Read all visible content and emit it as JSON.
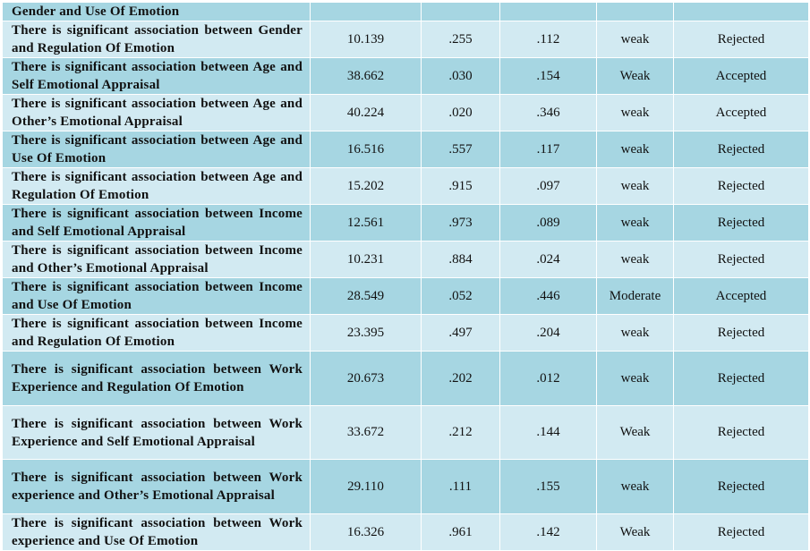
{
  "table": {
    "first_row_label": "Gender and Use Of Emotion",
    "rows": [
      {
        "hypothesis": "There is significant association between Gender and Regulation Of Emotion",
        "chi_square": "10.139",
        "p_value": ".255",
        "coefficient": ".112",
        "strength": "weak",
        "result": "Rejected"
      },
      {
        "hypothesis": "There is significant association between Age and Self Emotional Appraisal",
        "chi_square": "38.662",
        "p_value": ".030",
        "coefficient": ".154",
        "strength": "Weak",
        "result": "Accepted"
      },
      {
        "hypothesis": "There is significant association between Age and Other’s Emotional Appraisal",
        "chi_square": "40.224",
        "p_value": ".020",
        "coefficient": ".346",
        "strength": "weak",
        "result": "Accepted"
      },
      {
        "hypothesis": "There is significant association between Age and Use Of Emotion",
        "chi_square": "16.516",
        "p_value": ".557",
        "coefficient": ".117",
        "strength": "weak",
        "result": "Rejected"
      },
      {
        "hypothesis": "There is significant association between Age and Regulation Of Emotion",
        "chi_square": "15.202",
        "p_value": ".915",
        "coefficient": ".097",
        "strength": "weak",
        "result": "Rejected"
      },
      {
        "hypothesis": "There is significant association between Income and Self Emotional Appraisal",
        "chi_square": "12.561",
        "p_value": ".973",
        "coefficient": ".089",
        "strength": "weak",
        "result": "Rejected"
      },
      {
        "hypothesis": "There is significant association between Income and Other’s Emotional Appraisal",
        "chi_square": "10.231",
        "p_value": ".884",
        "coefficient": ".024",
        "strength": "weak",
        "result": "Rejected"
      },
      {
        "hypothesis": "There is significant association between Income and Use Of Emotion",
        "chi_square": "28.549",
        "p_value": ".052",
        "coefficient": ".446",
        "strength": "Moderate",
        "result": "Accepted"
      },
      {
        "hypothesis": "There is significant association between Income and Regulation Of Emotion",
        "chi_square": "23.395",
        "p_value": ".497",
        "coefficient": ".204",
        "strength": "weak",
        "result": "Rejected"
      },
      {
        "hypothesis": "There is significant association between Work Experience and Regulation Of Emotion",
        "chi_square": "20.673",
        "p_value": ".202",
        "coefficient": ".012",
        "strength": "weak",
        "result": "Rejected"
      },
      {
        "hypothesis": "There is significant association between Work Experience and Self Emotional Appraisal",
        "chi_square": "33.672",
        "p_value": ".212",
        "coefficient": ".144",
        "strength": "Weak",
        "result": "Rejected"
      },
      {
        "hypothesis": "There is significant association between Work experience and Other’s Emotional Appraisal",
        "chi_square": "29.110",
        "p_value": ".111",
        "coefficient": ".155",
        "strength": "weak",
        "result": "Rejected"
      },
      {
        "hypothesis": "There is significant association between Work experience and Use Of Emotion",
        "chi_square": "16.326",
        "p_value": ".961",
        "coefficient": ".142",
        "strength": "Weak",
        "result": "Rejected"
      }
    ]
  }
}
